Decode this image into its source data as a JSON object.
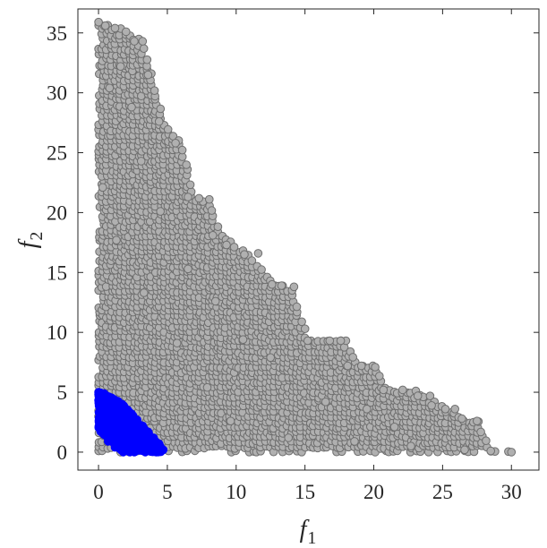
{
  "chart_data": {
    "type": "scatter",
    "title": "",
    "xlabel": "f",
    "xlabel_sub": "1",
    "ylabel": "f",
    "ylabel_sub": "2",
    "xlim": [
      -1.5,
      32
    ],
    "ylim": [
      -1.5,
      37
    ],
    "xticks": [
      0,
      5,
      10,
      15,
      20,
      25,
      30
    ],
    "yticks": [
      0,
      5,
      10,
      15,
      20,
      25,
      30,
      35
    ],
    "grid": false,
    "legend": "none",
    "colors": {
      "all_solutions_fill": "#b0b0b0",
      "all_solutions_edge": "#6e6e6e",
      "pareto_fill": "#0000ff",
      "axis": "#262626"
    },
    "series": [
      {
        "role": "all_solutions",
        "envelope": [
          [
            0,
            35.9
          ],
          [
            1,
            35.6
          ],
          [
            2,
            35.2
          ],
          [
            3,
            34.4
          ],
          [
            4,
            31.4
          ],
          [
            4.7,
            27.5
          ],
          [
            6,
            25.8
          ],
          [
            7,
            21.3
          ],
          [
            8,
            21.1
          ],
          [
            9,
            18.2
          ],
          [
            11,
            16.6
          ],
          [
            13,
            14.0
          ],
          [
            14,
            13.8
          ],
          [
            15.2,
            9.4
          ],
          [
            17,
            9.3
          ],
          [
            18,
            9.3
          ],
          [
            19,
            7.2
          ],
          [
            20.1,
            7.2
          ],
          [
            21,
            5.2
          ],
          [
            23,
            5.2
          ],
          [
            24,
            4.7
          ],
          [
            25.2,
            3.6
          ],
          [
            26,
            3.5
          ],
          [
            26.5,
            2.8
          ],
          [
            27.5,
            2.6
          ],
          [
            28.5,
            0.3
          ],
          [
            30,
            0
          ],
          [
            0,
            0
          ]
        ],
        "points": [
          [
            0,
            35.9
          ],
          [
            0.5,
            35.6
          ],
          [
            1.2,
            35.4
          ],
          [
            2,
            35.1
          ],
          [
            2.6,
            34.3
          ],
          [
            3.2,
            34.3
          ],
          [
            3.6,
            31.5
          ],
          [
            4.4,
            27.6
          ],
          [
            5.6,
            25.8
          ],
          [
            6.5,
            21.3
          ],
          [
            7.3,
            21.2
          ],
          [
            8.3,
            18.1
          ],
          [
            9.3,
            17.3
          ],
          [
            10.6,
            16.5
          ],
          [
            11.6,
            16.6
          ],
          [
            12.6,
            14.0
          ],
          [
            13.3,
            13.9
          ],
          [
            14.2,
            13.8
          ],
          [
            15,
            10.3
          ],
          [
            15.2,
            9.3
          ],
          [
            16.8,
            9.3
          ],
          [
            17.6,
            9.3
          ],
          [
            18.1,
            7.2
          ],
          [
            19.1,
            7.2
          ],
          [
            20.1,
            7.1
          ],
          [
            20.7,
            5.2
          ],
          [
            22.1,
            5.2
          ],
          [
            23.2,
            4.7
          ],
          [
            24.2,
            3.9
          ],
          [
            25.2,
            3.6
          ],
          [
            25.9,
            3.6
          ],
          [
            26.4,
            2.8
          ],
          [
            27.5,
            2.6
          ],
          [
            28.5,
            0.1
          ],
          [
            30,
            0
          ],
          [
            21.5,
            2.1
          ],
          [
            19.5,
            3.6
          ],
          [
            16.5,
            4.2
          ],
          [
            12.5,
            7.9
          ],
          [
            10.5,
            9.4
          ],
          [
            8.5,
            12.6
          ],
          [
            6.5,
            15.3
          ],
          [
            4.5,
            20.1
          ],
          [
            3.1,
            24.3
          ],
          [
            2.4,
            28.8
          ],
          [
            1.6,
            32.2
          ],
          [
            0.8,
            30.4
          ],
          [
            0.3,
            22.1
          ],
          [
            1.3,
            17.7
          ],
          [
            3.3,
            13.3
          ],
          [
            5.7,
            9.1
          ],
          [
            7.9,
            5.4
          ],
          [
            9.6,
            2.6
          ],
          [
            13.8,
            1.2
          ],
          [
            18.6,
            0.9
          ],
          [
            22.7,
            0.5
          ],
          [
            26.6,
            0.2
          ]
        ]
      },
      {
        "role": "pareto_front",
        "envelope": [
          [
            0,
            5.0
          ],
          [
            0.6,
            4.8
          ],
          [
            1.4,
            4.3
          ],
          [
            2.2,
            3.5
          ],
          [
            3,
            2.4
          ],
          [
            3.8,
            1.4
          ],
          [
            4.7,
            0.2
          ],
          [
            4.7,
            0
          ],
          [
            1.8,
            0
          ],
          [
            0,
            1.9
          ]
        ],
        "points": [
          [
            0,
            5.0
          ],
          [
            0.4,
            4.9
          ],
          [
            0.8,
            4.6
          ],
          [
            1.2,
            4.3
          ],
          [
            1.6,
            3.9
          ],
          [
            2,
            3.6
          ],
          [
            2.4,
            3.2
          ],
          [
            2.8,
            2.7
          ],
          [
            3.2,
            2.2
          ],
          [
            3.6,
            1.7
          ],
          [
            4,
            1.2
          ],
          [
            4.4,
            0.7
          ],
          [
            4.7,
            0.2
          ],
          [
            1.8,
            0
          ],
          [
            2.6,
            0
          ],
          [
            3.4,
            0
          ],
          [
            4.2,
            0
          ],
          [
            1.2,
            0.4
          ],
          [
            0.7,
            0.9
          ],
          [
            0.2,
            1.8
          ],
          [
            1.5,
            2.1
          ],
          [
            2.5,
            1.2
          ],
          [
            1.0,
            3.0
          ]
        ]
      }
    ]
  }
}
